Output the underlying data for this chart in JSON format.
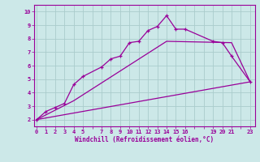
{
  "xlabel": "Windchill (Refroidissement éolien,°C)",
  "bg_color": "#cce8e8",
  "line_color": "#990099",
  "grid_color": "#aacccc",
  "ylim": [
    1.5,
    10.5
  ],
  "xlim": [
    -0.3,
    23.5
  ],
  "yticks": [
    2,
    3,
    4,
    5,
    6,
    7,
    8,
    9,
    10
  ],
  "xtick_labels": [
    "0",
    "1",
    "2",
    "3",
    "4",
    "5",
    "",
    "7",
    "8",
    "9",
    "10",
    "11",
    "12",
    "13",
    "14",
    "15",
    "16",
    "",
    "",
    "19",
    "20",
    "21",
    "",
    "23"
  ],
  "xtick_positions": [
    0,
    1,
    2,
    3,
    4,
    5,
    6,
    7,
    8,
    9,
    10,
    11,
    12,
    13,
    14,
    15,
    16,
    17,
    18,
    19,
    20,
    21,
    22,
    23
  ],
  "curve1_x": [
    0,
    1,
    2,
    3,
    4,
    5,
    7,
    8,
    9,
    10,
    11,
    12,
    13,
    14,
    15,
    16,
    19,
    20,
    21,
    23
  ],
  "curve1_y": [
    2.0,
    2.6,
    2.9,
    3.2,
    4.6,
    5.2,
    5.9,
    6.5,
    6.7,
    7.7,
    7.8,
    8.6,
    8.9,
    9.7,
    8.7,
    8.7,
    7.8,
    7.7,
    6.7,
    4.8
  ],
  "curve2_x": [
    0,
    4,
    14,
    21,
    23
  ],
  "curve2_y": [
    2.0,
    3.4,
    7.8,
    7.7,
    4.8
  ],
  "curve3_x": [
    0,
    23
  ],
  "curve3_y": [
    2.0,
    4.8
  ]
}
